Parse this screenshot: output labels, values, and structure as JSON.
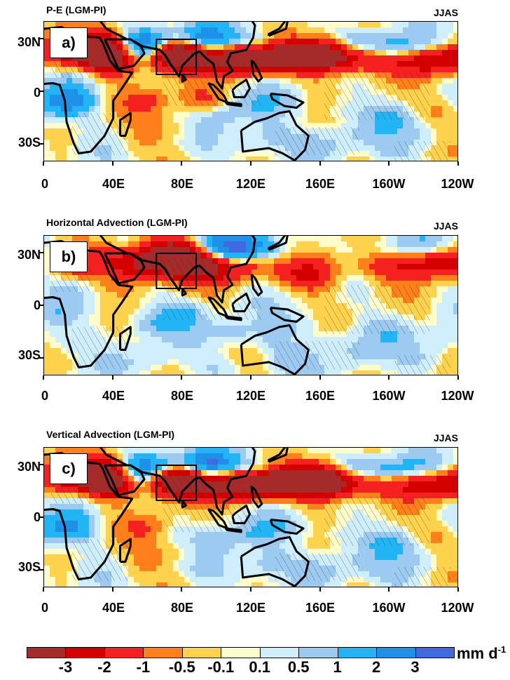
{
  "season": "JJAS",
  "chart_data": [
    {
      "type": "heatmap",
      "title": "P-E (LGM-PI)",
      "panel_label": "a)",
      "season": "JJAS"
    },
    {
      "type": "heatmap",
      "title": "Horizontal Advection (LGM-PI)",
      "panel_label": "b)",
      "season": "JJAS"
    },
    {
      "type": "heatmap",
      "title": "Vertical Advection (LGM-PI)",
      "panel_label": "c)",
      "season": "JJAS"
    }
  ],
  "axes": {
    "x_ticks": [
      "0",
      "40E",
      "80E",
      "120E",
      "160E",
      "160W",
      "120W"
    ],
    "y_ticks": [
      "30N",
      "0",
      "30S"
    ],
    "lon_range": [
      0,
      240
    ],
    "lat_range": [
      -40,
      40
    ]
  },
  "colorbar": {
    "labels": [
      "-3",
      "-2",
      "-1",
      "-0.5",
      "-0.1",
      "0.1",
      "0.5",
      "1",
      "2",
      "3"
    ],
    "colors": [
      "#a52a2a",
      "#d40000",
      "#f52020",
      "#ff7f1a",
      "#ffd24d",
      "#fffccb",
      "#cdeefa",
      "#9ccaf0",
      "#22b4f5",
      "#1e90e8",
      "#4169e1"
    ],
    "unit": "mm d",
    "unit_exp": "-1"
  }
}
